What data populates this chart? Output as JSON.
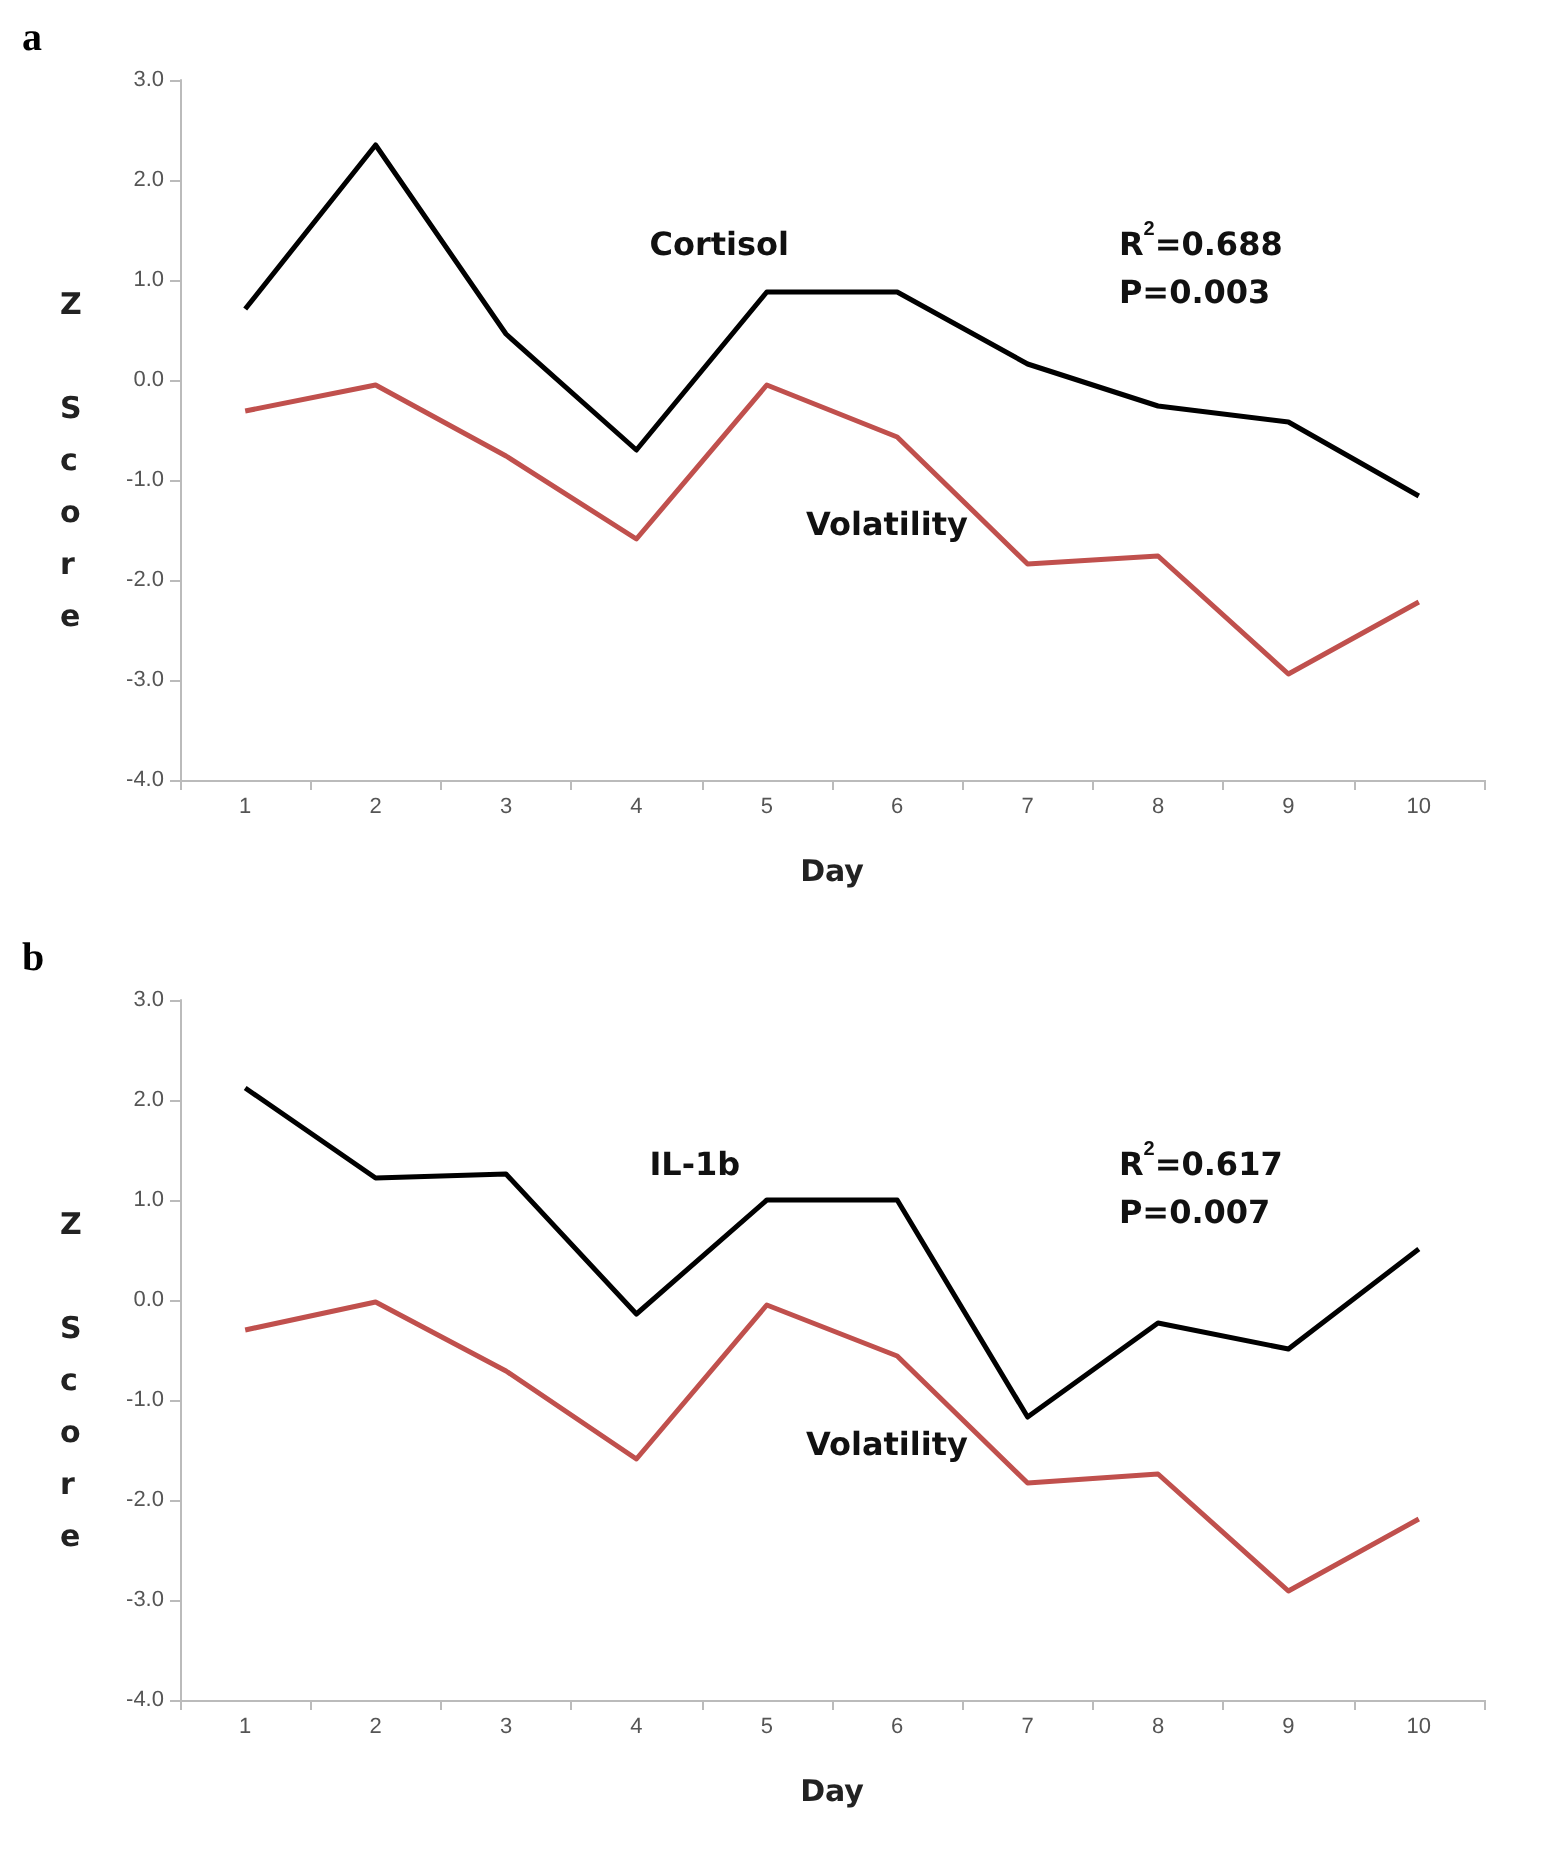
{
  "chart_data": [
    {
      "type": "line",
      "title": "a",
      "xlabel": "Day",
      "ylabel": "Z Score",
      "categories": [
        "1",
        "2",
        "3",
        "4",
        "5",
        "6",
        "7",
        "8",
        "9",
        "10"
      ],
      "series": [
        {
          "color": "#000000",
          "values": [
            0.71,
            2.35,
            0.46,
            -0.7,
            0.88,
            0.88,
            0.16,
            -0.26,
            -0.42,
            -1.16
          ]
        },
        {
          "color": "#c0504d",
          "values": [
            -0.31,
            -0.05,
            -0.76,
            -1.59,
            -0.05,
            -0.57,
            -1.84,
            -1.76,
            -2.94,
            -2.22
          ]
        }
      ],
      "annotations": [
        "Cortisol",
        "Volatility",
        "R$^{2}$=0.688\nP=0.003"
      ],
      "ylim": [
        -4,
        3
      ],
      "yticks": [
        {
          "value": -4,
          "label": "-4.0"
        },
        {
          "value": -3,
          "label": "-3.0"
        },
        {
          "value": -2,
          "label": "-2.0"
        },
        {
          "value": -1,
          "label": "-1.0"
        },
        {
          "value": 0,
          "label": "0.0"
        },
        {
          "value": 1,
          "label": "1.0"
        },
        {
          "value": 2,
          "label": "2.0"
        },
        {
          "value": 3,
          "label": "3.0"
        }
      ],
      "grid": false,
      "marker": "none",
      "line_style": "solid"
    },
    {
      "type": "line",
      "title": "b",
      "xlabel": "Day",
      "ylabel": "Z Score",
      "categories": [
        "1",
        "2",
        "3",
        "4",
        "5",
        "6",
        "7",
        "8",
        "9",
        "10"
      ],
      "series": [
        {
          "color": "#000000",
          "values": [
            2.12,
            1.22,
            1.26,
            -0.14,
            1.0,
            1.0,
            -1.17,
            -0.23,
            -0.49,
            0.51
          ]
        },
        {
          "color": "#c0504d",
          "values": [
            -0.3,
            -0.02,
            -0.71,
            -1.59,
            -0.05,
            -0.56,
            -1.83,
            -1.74,
            -2.91,
            -2.19
          ]
        }
      ],
      "annotations": [
        "IL-1b",
        "Volatility",
        "R$^{2}$=0.617\nP=0.007"
      ],
      "ylim": [
        -4,
        3
      ],
      "yticks": [
        {
          "value": -4,
          "label": "-4.0"
        },
        {
          "value": -3,
          "label": "-3.0"
        },
        {
          "value": -2,
          "label": "-2.0"
        },
        {
          "value": -1,
          "label": "-1.0"
        },
        {
          "value": 0,
          "label": "0.0"
        },
        {
          "value": 1,
          "label": "1.0"
        },
        {
          "value": 2,
          "label": "2.0"
        },
        {
          "value": 3,
          "label": "3.0"
        }
      ],
      "grid": false,
      "marker": "none",
      "line_style": "solid"
    }
  ]
}
